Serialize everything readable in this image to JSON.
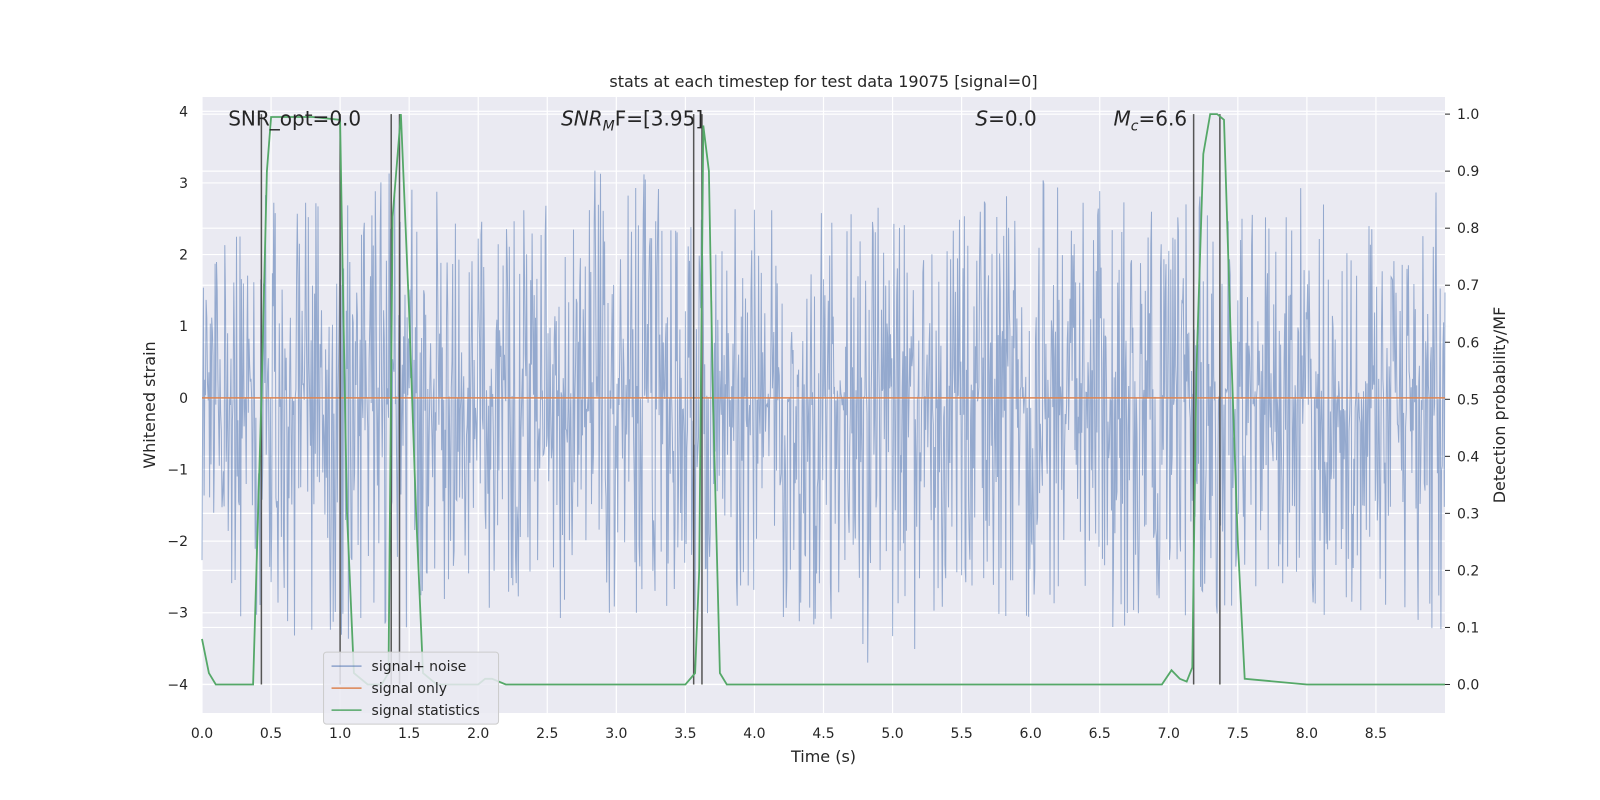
{
  "chart_data": {
    "type": "line",
    "title": "stats at each timestep for test data 19075 [signal=0]",
    "xlabel": "Time (s)",
    "ylabel": "Whitened strain",
    "y2label": "Detection probability/MF",
    "xlim": [
      0.0,
      9.0
    ],
    "ylim": [
      -4.4,
      4.2
    ],
    "y2lim": [
      -0.05,
      1.03
    ],
    "x_ticks": [
      "0.0",
      "0.5",
      "1.0",
      "1.5",
      "2.0",
      "2.5",
      "3.0",
      "3.5",
      "4.0",
      "4.5",
      "5.0",
      "5.5",
      "6.0",
      "6.5",
      "7.0",
      "7.5",
      "8.0",
      "8.5"
    ],
    "y_ticks": [
      "−4",
      "−3",
      "−2",
      "−1",
      "0",
      "1",
      "2",
      "3",
      "4"
    ],
    "y2_ticks": [
      "0.0",
      "0.1",
      "0.2",
      "0.3",
      "0.4",
      "0.5",
      "0.6",
      "0.7",
      "0.8",
      "0.9",
      "1.0"
    ],
    "grid": true,
    "legend_position": "bottom-left",
    "annotations": {
      "snr_opt": "SNR_opt=0.0",
      "snr_mf_main": "SNR",
      "snr_mf_sub": "M",
      "snr_mf_tail": "F=[3.95]",
      "s_main": "S",
      "s_tail": "=0.0",
      "mc_main": "M",
      "mc_sub": "c",
      "mc_tail": "=6.6"
    },
    "series": [
      {
        "name": "signal+ noise",
        "color": "#4c72b0",
        "description_values": "dense noise, roughly symmetric between -4 and +4",
        "envelope": {
          "x": [
            0.0,
            0.5,
            1.0,
            1.5,
            2.0,
            2.5,
            3.0,
            3.5,
            4.0,
            4.5,
            5.0,
            5.5,
            6.0,
            6.5,
            7.0,
            7.5,
            8.0,
            8.5,
            9.0
          ],
          "upper": [
            2.4,
            2.9,
            2.9,
            3.5,
            2.6,
            2.7,
            3.5,
            2.6,
            2.7,
            2.6,
            2.7,
            2.8,
            3.1,
            2.9,
            2.8,
            2.9,
            3.0,
            3.0,
            2.9
          ],
          "lower": [
            -2.9,
            -3.3,
            -3.5,
            -3.4,
            -3.0,
            -3.1,
            -3.0,
            -3.1,
            -3.0,
            -3.3,
            -4.1,
            -3.0,
            -3.1,
            -3.2,
            -3.2,
            -3.0,
            -3.1,
            -3.4,
            -3.3
          ]
        }
      },
      {
        "name": "signal only",
        "color": "#dd8452",
        "x": [
          0.0,
          9.0
        ],
        "y": [
          0.0,
          0.0
        ]
      },
      {
        "name": "signal statistics",
        "color": "#55a868",
        "axis": "right",
        "x": [
          0.0,
          0.05,
          0.1,
          0.2,
          0.3,
          0.37,
          0.43,
          0.47,
          0.5,
          0.6,
          0.8,
          1.0,
          1.02,
          1.05,
          1.1,
          1.2,
          1.3,
          1.35,
          1.38,
          1.44,
          1.5,
          1.55,
          1.6,
          1.7,
          1.9,
          2.0,
          2.05,
          2.1,
          2.2,
          2.5,
          3.0,
          3.5,
          3.57,
          3.6,
          3.63,
          3.67,
          3.7,
          3.75,
          3.8,
          4.0,
          5.0,
          6.0,
          6.95,
          7.02,
          7.08,
          7.13,
          7.17,
          7.2,
          7.25,
          7.3,
          7.35,
          7.4,
          7.45,
          7.5,
          7.55,
          8.0,
          9.0
        ],
        "y": [
          0.08,
          0.02,
          0.0,
          0.0,
          0.0,
          0.0,
          0.5,
          0.9,
          0.995,
          0.995,
          0.995,
          0.99,
          0.7,
          0.3,
          0.02,
          0.0,
          0.0,
          0.02,
          0.82,
          1.0,
          0.65,
          0.3,
          0.02,
          0.0,
          0.0,
          0.0,
          0.01,
          0.01,
          0.0,
          0.0,
          0.0,
          0.0,
          0.02,
          0.2,
          0.98,
          0.9,
          0.5,
          0.02,
          0.0,
          0.0,
          0.0,
          0.0,
          0.0,
          0.025,
          0.01,
          0.005,
          0.03,
          0.55,
          0.93,
          1.0,
          1.0,
          0.99,
          0.6,
          0.25,
          0.01,
          0.0,
          0.0
        ]
      }
    ],
    "vlines": [
      0.43,
      1.0,
      1.37,
      1.43,
      3.56,
      3.62,
      7.18,
      7.37
    ],
    "vlines_ylim_right": [
      0.0,
      1.0
    ]
  }
}
